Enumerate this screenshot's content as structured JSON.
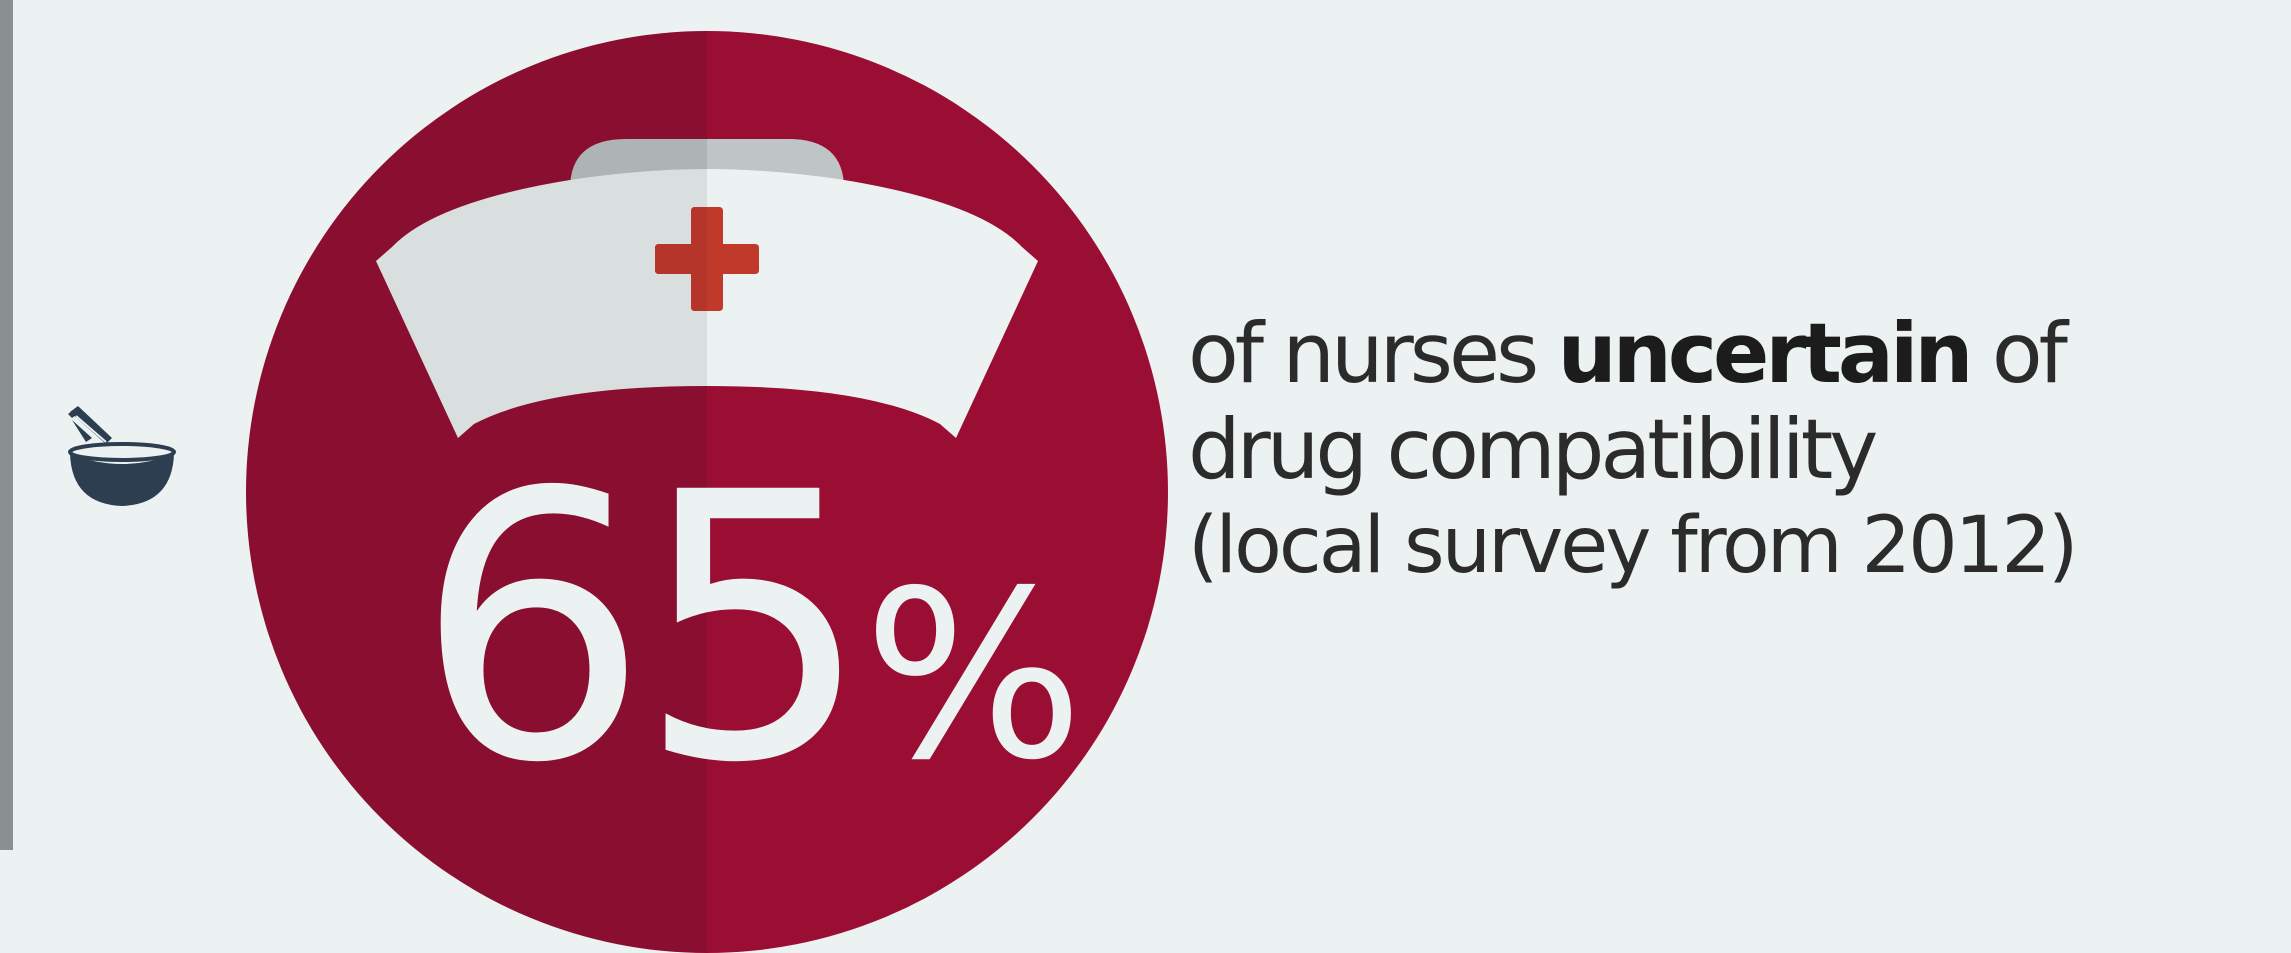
{
  "statistic": {
    "value": "65",
    "unit": "%",
    "fraction": 0.65
  },
  "caption": {
    "prefix": "of nurses ",
    "emphasis": "uncertain",
    "suffix": " of",
    "line2": "drug compatibility",
    "line3": "(local survey from 2012)"
  },
  "icons": {
    "left": "mortar-and-pestle-icon",
    "main": "nurse-cap-icon"
  },
  "colors": {
    "background": "#ecf2f1",
    "circle_left": "#8a0e30",
    "circle_right": "#9b0e34",
    "cross": "#c0392b",
    "text": "#2b2b2b",
    "mortar": "#2c3e50"
  }
}
